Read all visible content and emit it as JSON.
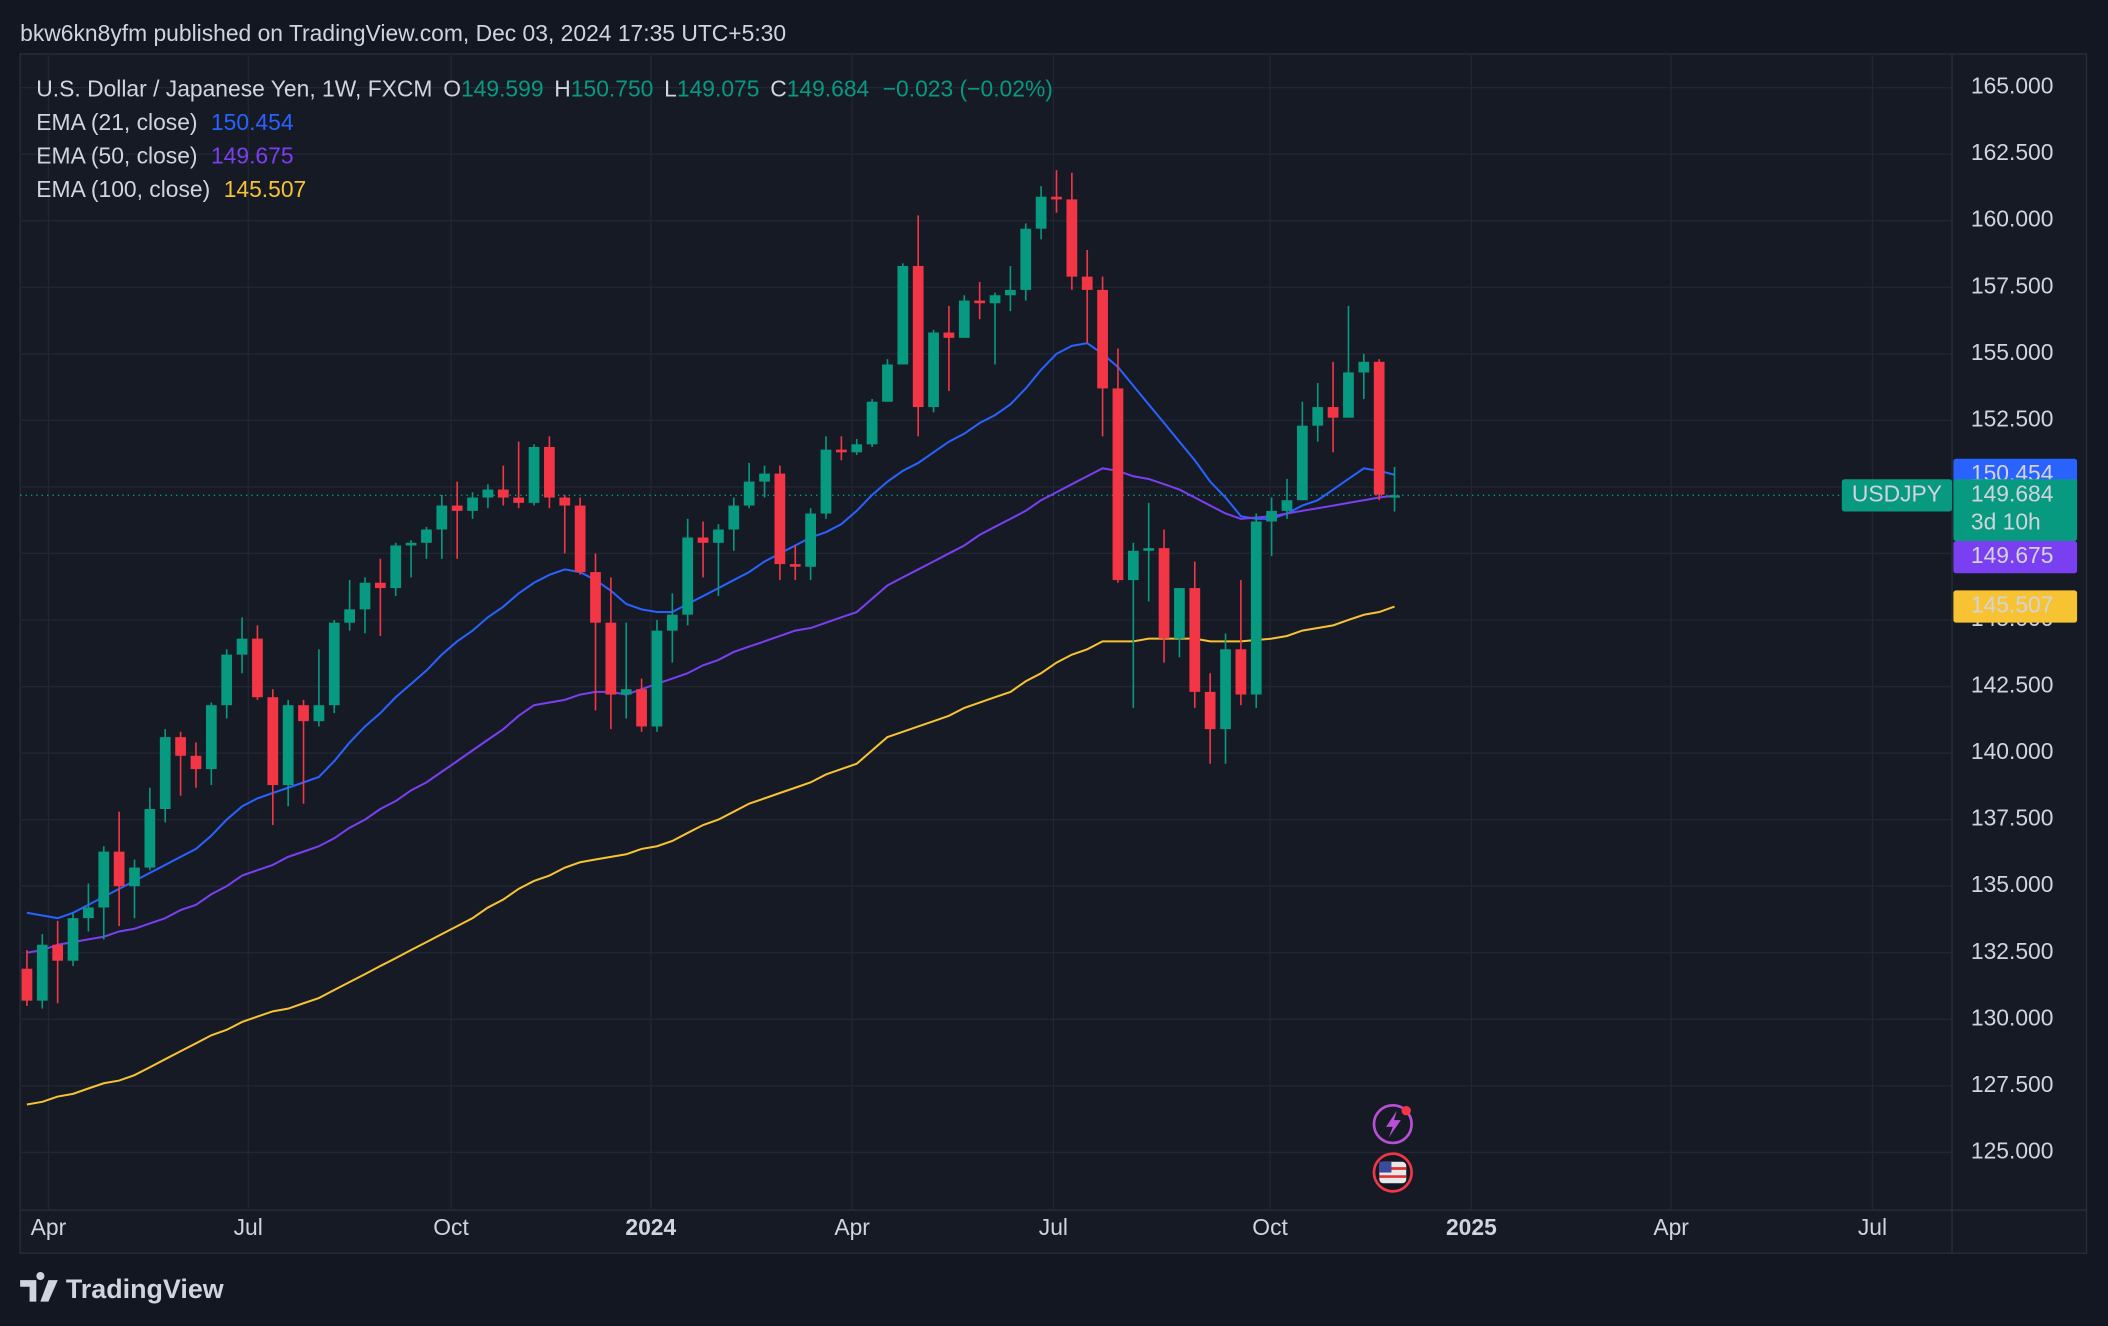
{
  "header": "bkw6kn8yfm published on TradingView.com, Dec 03, 2024 17:35 UTC+5:30",
  "footer": "TradingView",
  "chart_data": {
    "type": "candlestick",
    "title": "U.S. Dollar / Japanese Yen, 1W, FXCM",
    "symbol": "USDJPY",
    "countdown": "3d 10h",
    "ohlc_legend": [
      {
        "key": "O",
        "text": "149.599"
      },
      {
        "key": "H",
        "text": "150.750"
      },
      {
        "key": "L",
        "text": "149.075"
      },
      {
        "key": "C",
        "text": "149.684"
      }
    ],
    "change": "−0.023 (−0.02%)",
    "colors": {
      "up": "#089981",
      "down": "#f23645"
    },
    "open": [
      131.9,
      130.7,
      132.8,
      132.2,
      133.8,
      134.2,
      136.3,
      135.0,
      135.7,
      137.9,
      140.6,
      139.9,
      139.4,
      141.8,
      143.7,
      144.3,
      142.1,
      138.8,
      141.8,
      141.2,
      141.8,
      144.9,
      145.4,
      146.4,
      146.2,
      147.8,
      147.9,
      148.4,
      149.3,
      149.1,
      149.6,
      149.9,
      149.6,
      149.4,
      151.5,
      149.6,
      149.3,
      146.8,
      144.9,
      142.2,
      142.4,
      141.0,
      144.6,
      145.2,
      148.1,
      147.9,
      148.4,
      149.3,
      150.2,
      150.5,
      147.1,
      147.0,
      149.0,
      151.4,
      151.3,
      151.6,
      153.2,
      154.6,
      158.3,
      153.0,
      155.8,
      155.6,
      157.0,
      156.9,
      157.2,
      157.4,
      159.7,
      160.9,
      160.8,
      157.9,
      157.4,
      153.7,
      146.5,
      147.6,
      147.7,
      144.3,
      146.2,
      142.3,
      140.9,
      143.9,
      142.2,
      148.7,
      149.1,
      149.5,
      152.3,
      153.0,
      152.6,
      154.3,
      154.7,
      149.599
    ],
    "high": [
      132.6,
      133.2,
      133.7,
      134.0,
      135.1,
      136.5,
      137.8,
      136.0,
      138.7,
      140.9,
      140.8,
      140.4,
      141.9,
      143.9,
      145.1,
      144.8,
      142.4,
      142.0,
      142.0,
      143.9,
      145.0,
      146.5,
      146.6,
      147.3,
      147.9,
      148.0,
      148.5,
      149.7,
      150.2,
      149.8,
      150.1,
      150.8,
      151.7,
      151.6,
      151.9,
      149.7,
      149.6,
      147.5,
      146.6,
      144.9,
      142.8,
      145.0,
      146.0,
      148.8,
      148.7,
      148.6,
      149.6,
      150.9,
      150.8,
      150.8,
      147.8,
      149.2,
      151.9,
      151.9,
      151.8,
      153.3,
      154.8,
      158.4,
      160.2,
      155.9,
      156.8,
      157.2,
      157.7,
      157.3,
      158.3,
      159.9,
      161.3,
      161.9,
      161.8,
      158.9,
      157.9,
      155.2,
      147.9,
      149.4,
      148.4,
      146.2,
      147.2,
      143.0,
      144.5,
      146.5,
      149.0,
      149.6,
      150.3,
      153.2,
      153.9,
      154.7,
      156.8,
      155.0,
      154.8,
      150.75
    ],
    "low": [
      130.5,
      130.4,
      130.6,
      132.0,
      133.3,
      133.0,
      133.5,
      133.8,
      135.6,
      137.4,
      138.4,
      138.7,
      138.8,
      141.3,
      143.0,
      142.0,
      137.3,
      138.0,
      138.1,
      141.0,
      141.5,
      144.6,
      144.5,
      144.4,
      145.9,
      146.6,
      147.3,
      147.3,
      147.3,
      148.8,
      149.2,
      149.3,
      149.2,
      149.3,
      149.2,
      147.5,
      146.7,
      141.6,
      140.9,
      141.3,
      140.8,
      140.8,
      143.4,
      144.8,
      146.6,
      145.9,
      147.6,
      149.2,
      149.6,
      146.5,
      146.5,
      146.5,
      148.8,
      151.0,
      151.2,
      151.5,
      153.2,
      154.6,
      151.9,
      152.8,
      153.6,
      155.6,
      156.3,
      154.6,
      156.6,
      157.0,
      159.3,
      160.3,
      157.4,
      155.4,
      151.9,
      146.4,
      141.7,
      145.7,
      143.4,
      143.6,
      141.7,
      139.6,
      139.6,
      141.8,
      141.7,
      147.4,
      148.8,
      149.5,
      151.7,
      151.3,
      152.6,
      153.3,
      149.5,
      149.075
    ],
    "close": [
      130.7,
      132.8,
      132.2,
      133.8,
      134.2,
      136.3,
      135.0,
      135.7,
      137.9,
      140.6,
      139.9,
      139.4,
      141.8,
      143.7,
      144.3,
      142.1,
      138.8,
      141.8,
      141.2,
      141.8,
      144.9,
      145.4,
      146.4,
      146.2,
      147.8,
      147.9,
      148.4,
      149.3,
      149.1,
      149.6,
      149.9,
      149.6,
      149.4,
      151.5,
      149.6,
      149.3,
      146.8,
      144.9,
      142.2,
      142.4,
      141.0,
      144.6,
      145.2,
      148.1,
      147.9,
      148.4,
      149.3,
      150.2,
      150.5,
      147.1,
      147.0,
      149.0,
      151.4,
      151.3,
      151.6,
      153.2,
      154.6,
      158.3,
      153.0,
      155.8,
      155.6,
      157.0,
      156.9,
      157.2,
      157.4,
      159.7,
      160.9,
      160.8,
      157.9,
      157.4,
      153.7,
      146.5,
      147.6,
      147.7,
      144.3,
      146.2,
      142.3,
      140.9,
      143.9,
      142.2,
      148.7,
      149.1,
      149.5,
      152.3,
      153.0,
      152.6,
      154.3,
      154.7,
      149.707,
      149.684
    ],
    "series": [
      {
        "name": "EMA (21, close)",
        "color": "#2962ff",
        "values": [
          134.0,
          133.9,
          133.8,
          134.0,
          134.3,
          134.6,
          134.9,
          135.2,
          135.5,
          135.8,
          136.1,
          136.4,
          136.9,
          137.5,
          138.0,
          138.3,
          138.5,
          138.7,
          138.9,
          139.1,
          139.7,
          140.4,
          141.0,
          141.5,
          142.1,
          142.6,
          143.1,
          143.7,
          144.2,
          144.6,
          145.1,
          145.5,
          146.0,
          146.4,
          146.7,
          146.9,
          146.8,
          146.5,
          146.1,
          145.6,
          145.4,
          145.3,
          145.3,
          145.6,
          145.9,
          146.2,
          146.5,
          146.8,
          147.2,
          147.5,
          147.8,
          148.1,
          148.3,
          148.6,
          149.1,
          149.7,
          150.2,
          150.6,
          150.9,
          151.3,
          151.7,
          152.0,
          152.4,
          152.7,
          153.1,
          153.7,
          154.4,
          155.0,
          155.3,
          155.4,
          155.0,
          154.5,
          153.8,
          153.1,
          152.4,
          151.7,
          151.0,
          150.2,
          149.6,
          148.9,
          148.8,
          148.8,
          149.0,
          149.3,
          149.5,
          149.9,
          150.3,
          150.7,
          150.6,
          150.454
        ]
      },
      {
        "name": "EMA (50, close)",
        "color": "#7b3ff2",
        "values": [
          132.5,
          132.6,
          132.8,
          132.9,
          133.0,
          133.1,
          133.3,
          133.4,
          133.6,
          133.8,
          134.1,
          134.3,
          134.7,
          135.0,
          135.4,
          135.6,
          135.8,
          136.1,
          136.3,
          136.5,
          136.8,
          137.2,
          137.5,
          137.9,
          138.2,
          138.6,
          138.9,
          139.3,
          139.7,
          140.1,
          140.5,
          140.9,
          141.4,
          141.8,
          141.9,
          142.0,
          142.2,
          142.3,
          142.3,
          142.2,
          142.4,
          142.6,
          142.8,
          143.0,
          143.3,
          143.5,
          143.8,
          144.0,
          144.2,
          144.4,
          144.6,
          144.7,
          144.9,
          145.1,
          145.3,
          145.8,
          146.3,
          146.6,
          146.9,
          147.2,
          147.5,
          147.8,
          148.2,
          148.5,
          148.8,
          149.1,
          149.5,
          149.8,
          150.1,
          150.4,
          150.7,
          150.6,
          150.4,
          150.3,
          150.1,
          149.9,
          149.6,
          149.3,
          149.0,
          148.8,
          148.85,
          148.9,
          149.0,
          149.1,
          149.2,
          149.3,
          149.4,
          149.5,
          149.6,
          149.675
        ]
      },
      {
        "name": "EMA (100, close)",
        "color": "#f7c332",
        "values": [
          126.8,
          126.9,
          127.1,
          127.2,
          127.4,
          127.6,
          127.7,
          127.9,
          128.2,
          128.5,
          128.8,
          129.1,
          129.4,
          129.6,
          129.9,
          130.1,
          130.3,
          130.4,
          130.6,
          130.8,
          131.1,
          131.4,
          131.7,
          132.0,
          132.3,
          132.6,
          132.9,
          133.2,
          133.5,
          133.8,
          134.2,
          134.5,
          134.9,
          135.2,
          135.4,
          135.7,
          135.9,
          136.0,
          136.1,
          136.2,
          136.4,
          136.5,
          136.7,
          137.0,
          137.3,
          137.5,
          137.8,
          138.1,
          138.3,
          138.5,
          138.7,
          138.9,
          139.2,
          139.4,
          139.6,
          140.1,
          140.6,
          140.8,
          141.0,
          141.2,
          141.4,
          141.7,
          141.9,
          142.1,
          142.3,
          142.7,
          143.0,
          143.4,
          143.7,
          143.9,
          144.2,
          144.2,
          144.2,
          144.3,
          144.3,
          144.3,
          144.3,
          144.2,
          144.2,
          144.2,
          144.25,
          144.3,
          144.4,
          144.6,
          144.7,
          144.8,
          145.0,
          145.2,
          145.3,
          145.507
        ]
      }
    ],
    "ylim": [
      122.83,
      166.263
    ],
    "yticks": [
      {
        "value": 125,
        "label": "125.000"
      },
      {
        "value": 127.5,
        "label": "127.500"
      },
      {
        "value": 130,
        "label": "130.000"
      },
      {
        "value": 132.5,
        "label": "132.500"
      },
      {
        "value": 135,
        "label": "135.000"
      },
      {
        "value": 137.5,
        "label": "137.500"
      },
      {
        "value": 140,
        "label": "140.000"
      },
      {
        "value": 142.5,
        "label": "142.500"
      },
      {
        "value": 145,
        "label": "145.000"
      },
      {
        "value": 147.5,
        "label": "147.500"
      },
      {
        "value": 150,
        "label": "150.000"
      },
      {
        "value": 152.5,
        "label": "152.500"
      },
      {
        "value": 155,
        "label": "155.000"
      },
      {
        "value": 157.5,
        "label": "157.500"
      },
      {
        "value": 160,
        "label": "160.000"
      },
      {
        "value": 162.5,
        "label": "162.500"
      },
      {
        "value": 165,
        "label": "165.000"
      }
    ],
    "xlim": [
      -0.44,
      125.28
    ],
    "xticks": [
      {
        "value": 1.4,
        "label": "Apr"
      },
      {
        "value": 14.4,
        "label": "Jul"
      },
      {
        "value": 27.6,
        "label": "Oct"
      },
      {
        "value": 40.6,
        "label": "2024"
      },
      {
        "value": 53.7,
        "label": "Apr"
      },
      {
        "value": 66.8,
        "label": "Jul"
      },
      {
        "value": 80.9,
        "label": "Oct"
      },
      {
        "value": 94.0,
        "label": "2025"
      },
      {
        "value": 107.0,
        "label": "Apr"
      },
      {
        "value": 120.1,
        "label": "Jul"
      }
    ],
    "grid": true
  }
}
